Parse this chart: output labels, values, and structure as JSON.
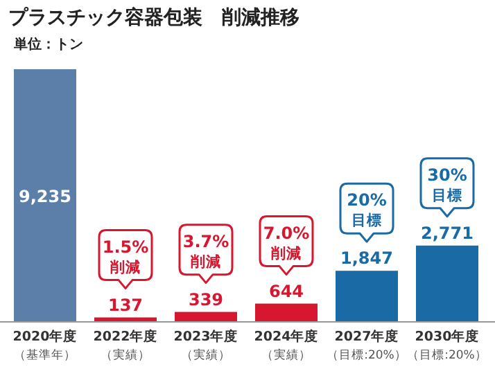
{
  "chart_data": {
    "type": "bar",
    "title": "プラスチック容器包装　削減推移",
    "subtitle": "単位：トン",
    "categories": [
      "2020年度（基準年）",
      "2022年度（実績）",
      "2023年度（実績）",
      "2024年度（実績）",
      "2027年度（目標:20%）",
      "2030年度（目標:20%）"
    ],
    "values": [
      9235,
      137,
      339,
      644,
      1847,
      2771
    ],
    "value_labels": [
      "9,235",
      "137",
      "339",
      "644",
      "1,847",
      "2,771"
    ],
    "colors": [
      "#5b7fa8",
      "#d7172f",
      "#d7172f",
      "#d7172f",
      "#1a6aa6",
      "#1a6aa6"
    ],
    "annotations": [
      {
        "text": "1.5%削減",
        "x": "2022年度（実績）"
      },
      {
        "text": "3.7%削減",
        "x": "2023年度（実績）"
      },
      {
        "text": "7.0%削減",
        "x": "2024年度（実績）"
      },
      {
        "text": "20%目標",
        "x": "2027年度（目標:20%）"
      },
      {
        "text": "30%目標",
        "x": "2030年度（目標:20%）"
      }
    ]
  }
}
